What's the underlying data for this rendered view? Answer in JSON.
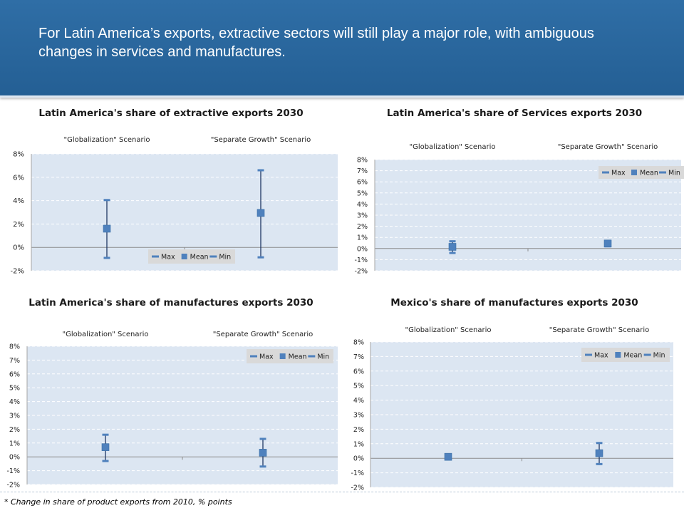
{
  "header": {
    "title": "For Latin America’s exports, extractive sectors will still play a major role, with ambiguous changes in services and manufactures."
  },
  "colors": {
    "header_bg": "#2a669e",
    "plot_bg": "#dce6f2",
    "marker": "#4f81bd",
    "error_bar": "#1f3864"
  },
  "footnote": "* Change in share of product exports from 2010, % points",
  "chart_data": [
    {
      "type": "scatter",
      "title": "Latin America's share of extractive exports 2030",
      "scenarios": [
        "\"Globalization\" Scenario",
        "\"Separate Growth\" Scenario"
      ],
      "series_names": [
        "Max",
        "Mean",
        "Min"
      ],
      "mean": [
        1.6,
        2.95
      ],
      "max": [
        4.05,
        6.6
      ],
      "min": [
        -0.9,
        -0.85
      ],
      "y_ticks": [
        "-2%",
        "0%",
        "2%",
        "4%",
        "6%",
        "8%"
      ],
      "ylim": [
        -2,
        8
      ],
      "legend_position": "bottom-center",
      "grid": true
    },
    {
      "type": "scatter",
      "title": "Latin America's share of Services exports 2030",
      "scenarios": [
        "\"Globalization\" Scenario",
        "\"Separate Growth\" Scenario"
      ],
      "series_names": [
        "Max",
        "Mean",
        "Min"
      ],
      "mean": [
        0.15,
        0.45
      ],
      "max": [
        0.65,
        0.65
      ],
      "min": [
        -0.4,
        0.2
      ],
      "y_ticks": [
        "-2%",
        "-1%",
        "0%",
        "1%",
        "2%",
        "3%",
        "4%",
        "5%",
        "6%",
        "7%",
        "8%"
      ],
      "ylim": [
        -2,
        8
      ],
      "legend_position": "top-right",
      "grid": true
    },
    {
      "type": "scatter",
      "title": "Latin America's share of manufactures exports 2030",
      "scenarios": [
        "\"Globalization\" Scenario",
        "\"Separate Growth\" Scenario"
      ],
      "series_names": [
        "Max",
        "Mean",
        "Min"
      ],
      "mean": [
        0.7,
        0.3
      ],
      "max": [
        1.6,
        1.3
      ],
      "min": [
        -0.3,
        -0.7
      ],
      "y_ticks": [
        "-2%",
        "-1%",
        "0%",
        "1%",
        "2%",
        "3%",
        "4%",
        "5%",
        "6%",
        "7%",
        "8%"
      ],
      "ylim": [
        -2,
        8
      ],
      "legend_position": "top-right",
      "grid": true
    },
    {
      "type": "scatter",
      "title": "Mexico's share of manufactures exports 2030",
      "scenarios": [
        "\"Globalization\" Scenario",
        "\"Separate Growth\" Scenario"
      ],
      "series_names": [
        "Max",
        "Mean",
        "Min"
      ],
      "mean": [
        0.1,
        0.35
      ],
      "max": [
        0.2,
        1.05
      ],
      "min": [
        0.0,
        -0.4
      ],
      "y_ticks": [
        "-2%",
        "-1%",
        "0%",
        "1%",
        "2%",
        "3%",
        "4%",
        "5%",
        "6%",
        "7%",
        "8%"
      ],
      "ylim": [
        -2,
        8
      ],
      "legend_position": "top-right",
      "grid": true
    }
  ]
}
